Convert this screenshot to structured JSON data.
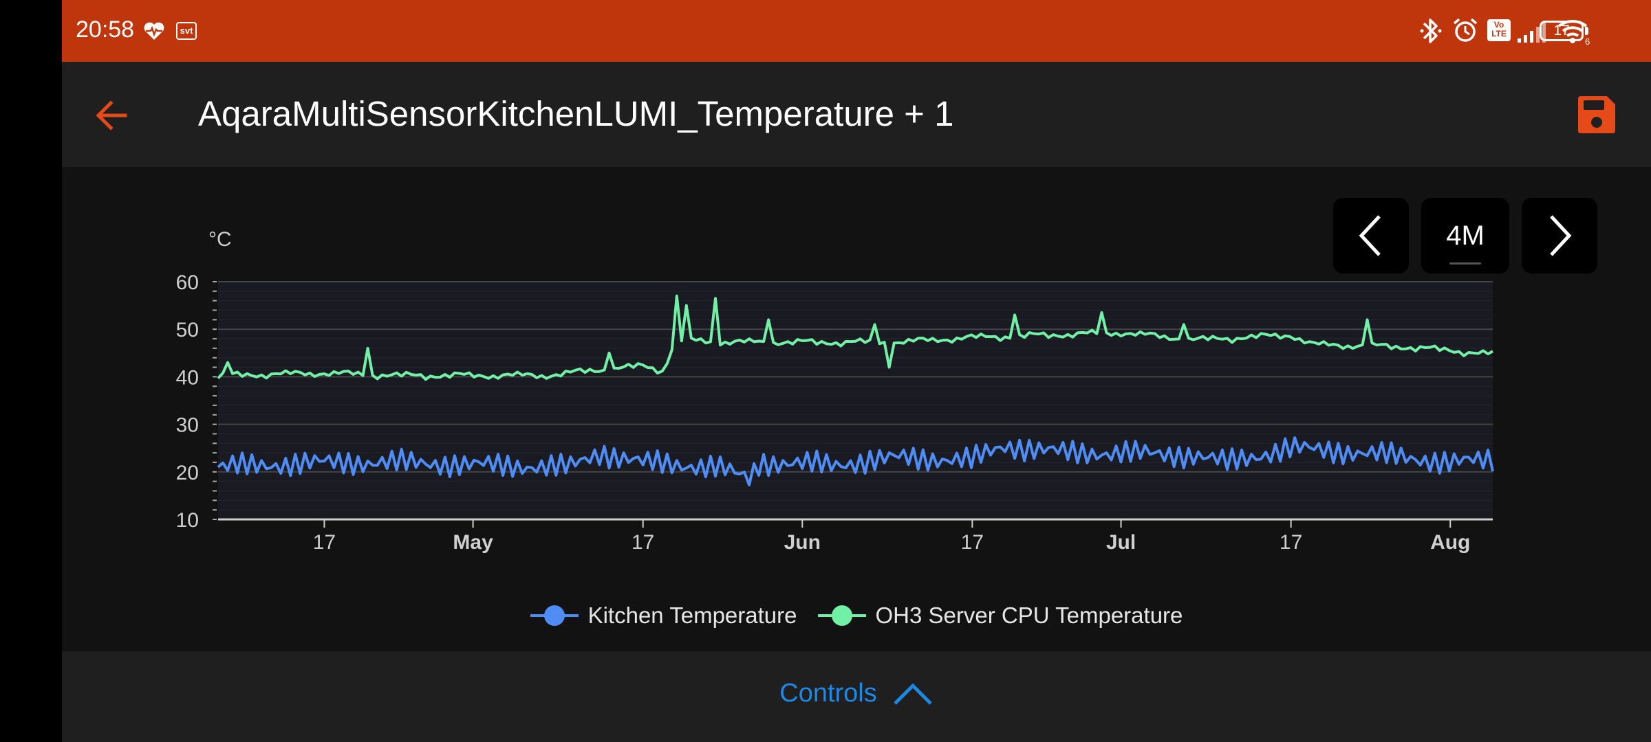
{
  "status_bar": {
    "time": "20:58",
    "left_icons": [
      "heart-pulse-icon",
      "svt-app-icon"
    ],
    "svt_label": "svt",
    "right_icons": [
      "bluetooth-icon",
      "alarm-icon",
      "volte-icon",
      "signal-icon",
      "wifi-6-icon"
    ],
    "volte_label": "Vo LTE",
    "wifi_label": "6",
    "battery": "17",
    "color": "#bf360c"
  },
  "app_bar": {
    "title": "AqaraMultiSensorKitchenLUMI_Temperature + 1",
    "back_icon": "arrow-left-icon",
    "save_icon": "floppy-disk-icon",
    "accent": "#e64a19"
  },
  "period_controls": {
    "prev_icon": "chevron-left-icon",
    "period": "4M",
    "next_icon": "chevron-right-icon"
  },
  "controls": {
    "label": "Controls",
    "icon": "chevron-up-icon",
    "color": "#1e88e5"
  },
  "chart_data": {
    "type": "line",
    "title": "",
    "ylabel": "°C",
    "ylim": [
      10,
      60
    ],
    "yticks": [
      10,
      20,
      30,
      40,
      50,
      60
    ],
    "xlim": [
      "2023-04-07",
      "2023-08-05"
    ],
    "xticks": [
      {
        "date": "2023-04-17",
        "label": "17",
        "bold": false
      },
      {
        "date": "2023-05-01",
        "label": "May",
        "bold": true
      },
      {
        "date": "2023-05-17",
        "label": "17",
        "bold": false
      },
      {
        "date": "2023-06-01",
        "label": "Jun",
        "bold": true
      },
      {
        "date": "2023-06-17",
        "label": "17",
        "bold": false
      },
      {
        "date": "2023-07-01",
        "label": "Jul",
        "bold": true
      },
      {
        "date": "2023-07-17",
        "label": "17",
        "bold": false
      },
      {
        "date": "2023-08-01",
        "label": "Aug",
        "bold": true
      }
    ],
    "grid": true,
    "legend_position": "bottom",
    "series": [
      {
        "name": "Kitchen Temperature",
        "color": "#4f8df5",
        "points": [
          [
            "2023-04-07",
            21
          ],
          [
            "2023-04-17",
            22
          ],
          [
            "2023-04-24",
            22
          ],
          [
            "2023-05-01",
            21.5
          ],
          [
            "2023-05-10",
            21
          ],
          [
            "2023-05-13",
            24
          ],
          [
            "2023-05-17",
            22
          ],
          [
            "2023-05-24",
            21
          ],
          [
            "2023-05-27",
            18.5
          ],
          [
            "2023-05-28",
            22
          ],
          [
            "2023-06-04",
            21.5
          ],
          [
            "2023-06-10",
            23
          ],
          [
            "2023-06-17",
            22.5
          ],
          [
            "2023-06-20",
            25.5
          ],
          [
            "2023-06-26",
            24
          ],
          [
            "2023-07-01",
            24
          ],
          [
            "2023-07-08",
            23.5
          ],
          [
            "2023-07-11",
            22
          ],
          [
            "2023-07-17",
            25
          ],
          [
            "2023-07-24",
            24
          ],
          [
            "2023-08-01",
            22
          ],
          [
            "2023-08-05",
            22.5
          ]
        ]
      },
      {
        "name": "OH3 Server CPU Temperature",
        "color": "#72f0a6",
        "points": [
          [
            "2023-04-07",
            40
          ],
          [
            "2023-04-17",
            40.5
          ],
          [
            "2023-04-24",
            40
          ],
          [
            "2023-05-01",
            40
          ],
          [
            "2023-05-08",
            40
          ],
          [
            "2023-05-12",
            41
          ],
          [
            "2023-05-17",
            42
          ],
          [
            "2023-05-19",
            41
          ],
          [
            "2023-05-20",
            47.5
          ],
          [
            "2023-05-25",
            47
          ],
          [
            "2023-06-01",
            47
          ],
          [
            "2023-06-10",
            47
          ],
          [
            "2023-06-17",
            48
          ],
          [
            "2023-06-24",
            48.5
          ],
          [
            "2023-07-01",
            49
          ],
          [
            "2023-07-08",
            47.5
          ],
          [
            "2023-07-17",
            48.5
          ],
          [
            "2023-07-19",
            46.5
          ],
          [
            "2023-07-28",
            46
          ],
          [
            "2023-08-05",
            44.5
          ]
        ],
        "spikes": [
          [
            "2023-04-08",
            43
          ],
          [
            "2023-04-21",
            46
          ],
          [
            "2023-05-14",
            45
          ],
          [
            "2023-05-20",
            57
          ],
          [
            "2023-05-21",
            55
          ],
          [
            "2023-05-24",
            56.5
          ],
          [
            "2023-05-29",
            52
          ],
          [
            "2023-06-08",
            51
          ],
          [
            "2023-06-09",
            42
          ],
          [
            "2023-06-21",
            53
          ],
          [
            "2023-06-29",
            53.5
          ],
          [
            "2023-07-07",
            51
          ],
          [
            "2023-07-24",
            52
          ]
        ]
      }
    ]
  }
}
